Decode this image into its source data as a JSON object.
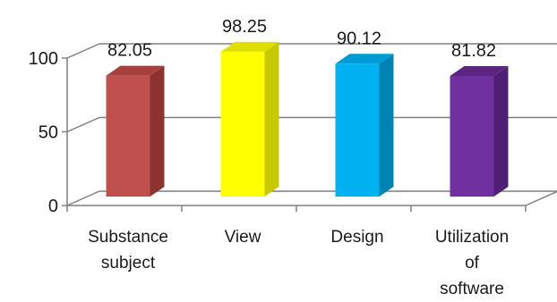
{
  "chart_data": {
    "type": "bar",
    "style": "3d-column",
    "categories": [
      "Substance subject",
      "View",
      "Design",
      "Utilization of software"
    ],
    "category_lines": [
      [
        "Substance",
        "subject"
      ],
      [
        "View"
      ],
      [
        "Design"
      ],
      [
        "Utilization",
        "of",
        "software"
      ]
    ],
    "values": [
      82.05,
      98.25,
      90.12,
      81.82
    ],
    "value_labels": [
      "82.05",
      "98.25",
      "90.12",
      "81.82"
    ],
    "y_ticks": [
      "0",
      "50",
      "100"
    ],
    "ylim": [
      0,
      100
    ],
    "grid": true,
    "legend": "none",
    "colors": {
      "bars": [
        "#c0504d",
        "#ffff00",
        "#00b0f0",
        "#7030a0"
      ],
      "sides": [
        "#8c3230",
        "#c9c900",
        "#0083b3",
        "#4e1f72"
      ],
      "tops": [
        "#a8403e",
        "#e0e000",
        "#009bd6",
        "#5c2585"
      ],
      "grid": "#7f7f7f",
      "axis": "#7f7f7f"
    }
  }
}
